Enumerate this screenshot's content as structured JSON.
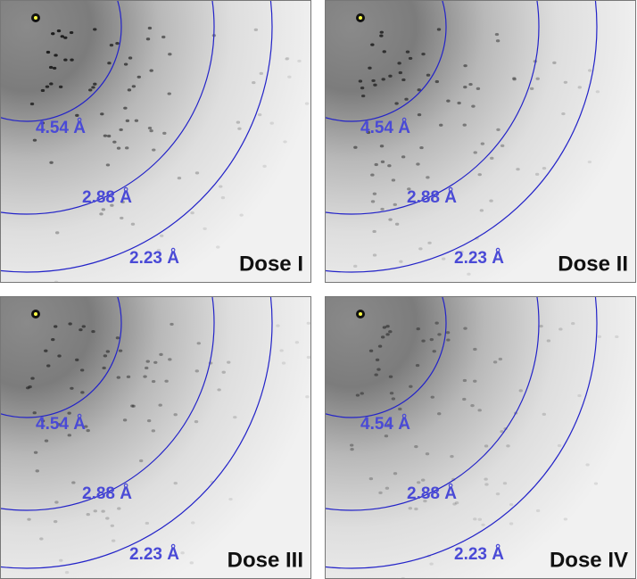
{
  "panels": [
    {
      "label": "Dose I",
      "rings": [
        "4.54 Å",
        "2.88 Å",
        "2.23 Å"
      ]
    },
    {
      "label": "Dose II",
      "rings": [
        "4.54 Å",
        "2.88 Å",
        "2.23 Å"
      ]
    },
    {
      "label": "Dose III",
      "rings": [
        "4.54 Å",
        "2.88 Å",
        "2.23 Å"
      ]
    },
    {
      "label": "Dose IV",
      "rings": [
        "4.54 Å",
        "2.88 Å",
        "2.23 Å"
      ]
    }
  ]
}
